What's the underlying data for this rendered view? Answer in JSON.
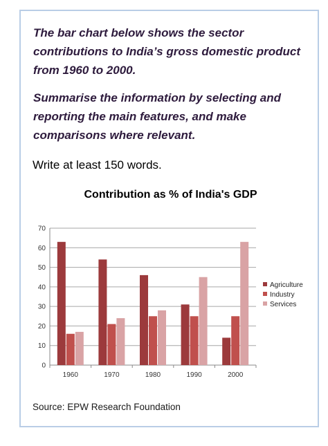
{
  "prompt": {
    "paragraph1": "The bar chart below shows the sector contributions to India’s gross domestic product from 1960 to 2000.",
    "paragraph2": "Summarise the information by selecting and reporting the main features, and make comparisons where relevant.",
    "instruction": "Write at least 150 words."
  },
  "source": "Source: EPW Research Foundation",
  "chart_data": {
    "type": "bar",
    "title": "Contribution as % of India's GDP",
    "xlabel": "",
    "ylabel": "",
    "categories": [
      "1960",
      "1970",
      "1980",
      "1990",
      "2000"
    ],
    "ylim": [
      0,
      70
    ],
    "yticks": [
      0,
      10,
      20,
      30,
      40,
      50,
      60,
      70
    ],
    "grid": true,
    "legend_position": "right",
    "series": [
      {
        "name": "Agriculture",
        "color": "#9c3a3c",
        "values": [
          63,
          54,
          46,
          31,
          14
        ]
      },
      {
        "name": "Industry",
        "color": "#c0504d",
        "values": [
          16,
          21,
          25,
          25,
          25
        ]
      },
      {
        "name": "Services",
        "color": "#d9a3a5",
        "values": [
          17,
          24,
          28,
          45,
          63
        ]
      }
    ]
  }
}
